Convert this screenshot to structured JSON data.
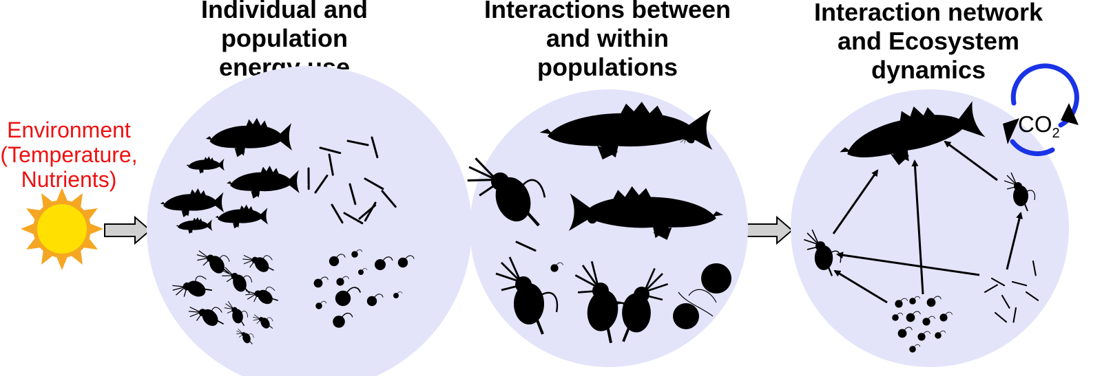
{
  "environment": {
    "lines": [
      "Environment",
      "(Temperature,",
      "Nutrients)"
    ],
    "color": "#ee1111"
  },
  "panels": [
    {
      "title_lines": [
        "Individual and",
        "population",
        "energy use"
      ]
    },
    {
      "title_lines": [
        "Interactions between",
        "and within",
        "populations"
      ]
    },
    {
      "title_lines": [
        "Interaction network",
        "and Ecosystem",
        "dynamics"
      ]
    }
  ],
  "co2": {
    "main": "CO",
    "sub": "2"
  },
  "colors": {
    "circle_fill": "#e3e4fa",
    "sun_rays": "#f5a623",
    "sun_core": "#ffe000",
    "arrow_fill": "#d0d0d0",
    "cycle_arrow": "#1a33e6"
  },
  "icons": [
    "sun-icon",
    "fish-icon",
    "zooplankton-icon",
    "algae-cell-icon",
    "filament-icon",
    "co2-cycle-icon"
  ]
}
